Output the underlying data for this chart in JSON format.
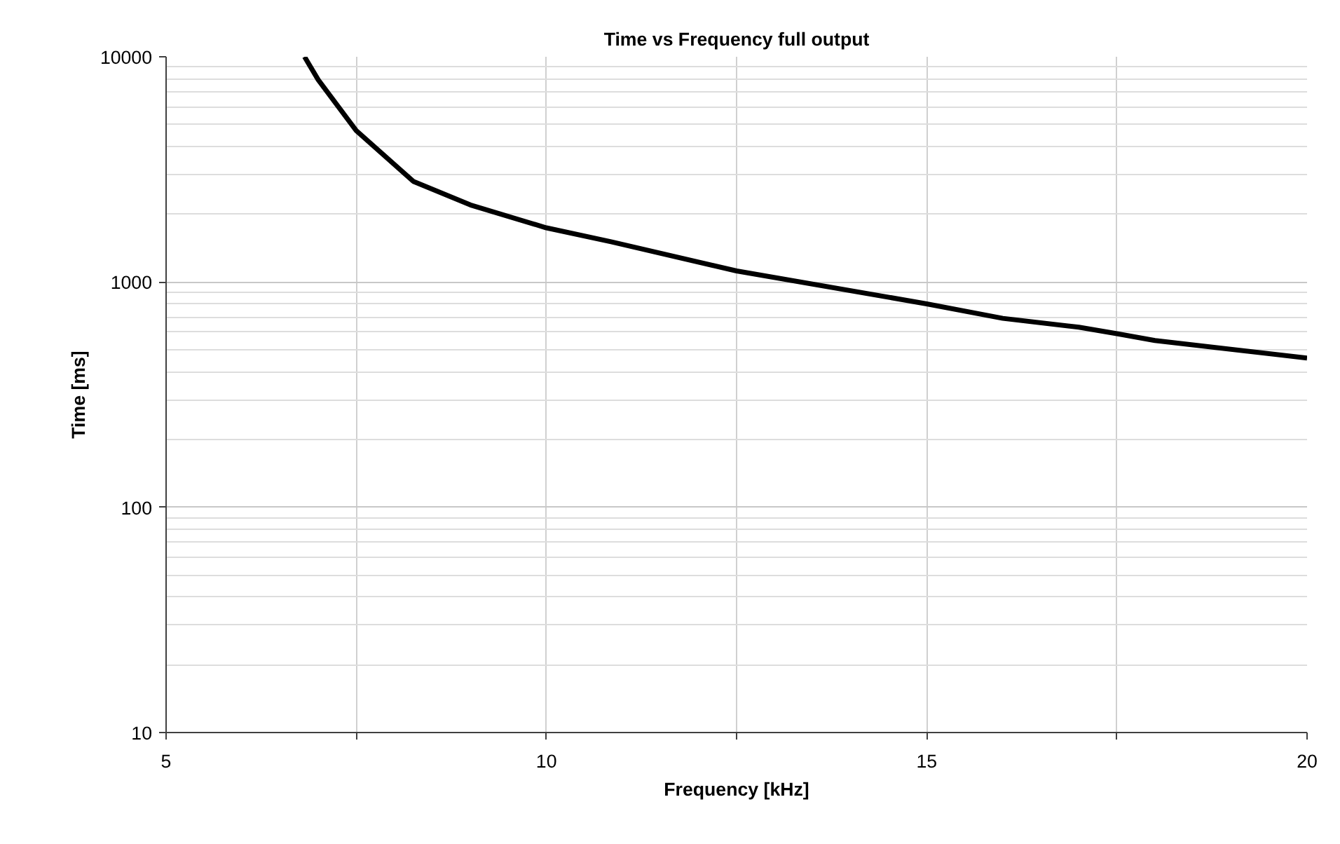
{
  "chart_data": {
    "type": "line",
    "title": "Time vs Frequency full output",
    "xlabel": "Frequency [kHz]",
    "ylabel": "Time [ms]",
    "x": [
      6.82,
      7.0,
      7.5,
      8.25,
      9,
      10,
      10.85,
      12.5,
      15,
      16,
      17,
      17.5,
      18,
      20
    ],
    "series": [
      {
        "color": "#000000",
        "values": [
          10000,
          7900,
          4700,
          2800,
          2200,
          1740,
          1510,
          1120,
          800,
          690,
          630,
          590,
          550,
          460
        ]
      }
    ],
    "log": "y",
    "xlim": [
      5,
      20
    ],
    "ylim": [
      10,
      10000
    ],
    "xticks": [
      5,
      {
        "value": 7.5,
        "label": null
      },
      10,
      {
        "value": 12.5,
        "label": null
      },
      15,
      {
        "value": 17.5,
        "label": null
      },
      20
    ],
    "yticks": [
      10,
      100,
      1000,
      10000
    ],
    "grid": true,
    "marker": "none",
    "line_style": "solid"
  }
}
